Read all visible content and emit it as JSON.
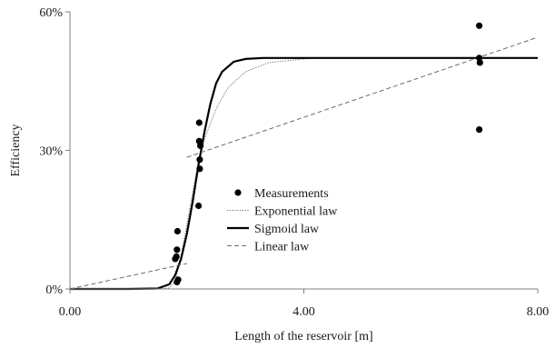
{
  "chart_data": {
    "type": "scatter",
    "xlabel": "Length of the reservoir [m]",
    "ylabel": "Efficiency",
    "xlim": [
      0,
      8
    ],
    "ylim": [
      0,
      60
    ],
    "x_ticks": [
      0,
      4,
      8
    ],
    "x_tick_labels": [
      "0.00",
      "4.00",
      "8.00"
    ],
    "y_ticks": [
      0,
      30,
      60
    ],
    "y_tick_labels": [
      "0%",
      "30%",
      "60%"
    ],
    "grid": false,
    "legend_position": "center",
    "series": [
      {
        "name": "Measurements",
        "kind": "points",
        "color": "#000000",
        "points": [
          [
            1.83,
            1.5
          ],
          [
            1.85,
            2.0
          ],
          [
            1.8,
            6.5
          ],
          [
            1.82,
            7.0
          ],
          [
            1.83,
            8.5
          ],
          [
            1.84,
            12.5
          ],
          [
            2.2,
            18.0
          ],
          [
            2.22,
            26.0
          ],
          [
            2.22,
            28.0
          ],
          [
            2.23,
            31.0
          ],
          [
            2.21,
            32.0
          ],
          [
            2.21,
            36.0
          ],
          [
            7.0,
            34.5
          ],
          [
            7.01,
            49.0
          ],
          [
            7.0,
            50.0
          ],
          [
            7.0,
            57.0
          ]
        ]
      },
      {
        "name": "Exponential law",
        "kind": "line",
        "style": "dotted",
        "color": "#6b6b6b",
        "points": [
          [
            1.5,
            0
          ],
          [
            1.7,
            0.2
          ],
          [
            1.8,
            1.8
          ],
          [
            1.9,
            7.0
          ],
          [
            2.0,
            14.0
          ],
          [
            2.1,
            21.0
          ],
          [
            2.2,
            27.5
          ],
          [
            2.3,
            32.5
          ],
          [
            2.5,
            39.0
          ],
          [
            2.7,
            43.5
          ],
          [
            3.0,
            47.0
          ],
          [
            3.4,
            49.0
          ],
          [
            4.0,
            49.8
          ],
          [
            4.2,
            50.0
          ],
          [
            8.0,
            50.0
          ]
        ]
      },
      {
        "name": "Sigmoid law",
        "kind": "line",
        "style": "solid",
        "color": "#000000",
        "points": [
          [
            0,
            0
          ],
          [
            1.0,
            0
          ],
          [
            1.5,
            0.1
          ],
          [
            1.7,
            1.0
          ],
          [
            1.8,
            3.0
          ],
          [
            1.9,
            6.5
          ],
          [
            2.0,
            12.0
          ],
          [
            2.1,
            19.0
          ],
          [
            2.2,
            27.0
          ],
          [
            2.3,
            34.0
          ],
          [
            2.4,
            40.0
          ],
          [
            2.5,
            44.5
          ],
          [
            2.6,
            47.0
          ],
          [
            2.8,
            49.2
          ],
          [
            3.0,
            49.8
          ],
          [
            3.3,
            50.0
          ],
          [
            8.0,
            50.0
          ]
        ]
      },
      {
        "name": "Linear law",
        "kind": "line",
        "style": "dashed",
        "color": "#6b6b6b",
        "segments": [
          [
            [
              0,
              0
            ],
            [
              2.0,
              5.5
            ]
          ],
          [
            [
              2.0,
              28.5
            ],
            [
              8.0,
              54.5
            ]
          ]
        ]
      }
    ]
  }
}
